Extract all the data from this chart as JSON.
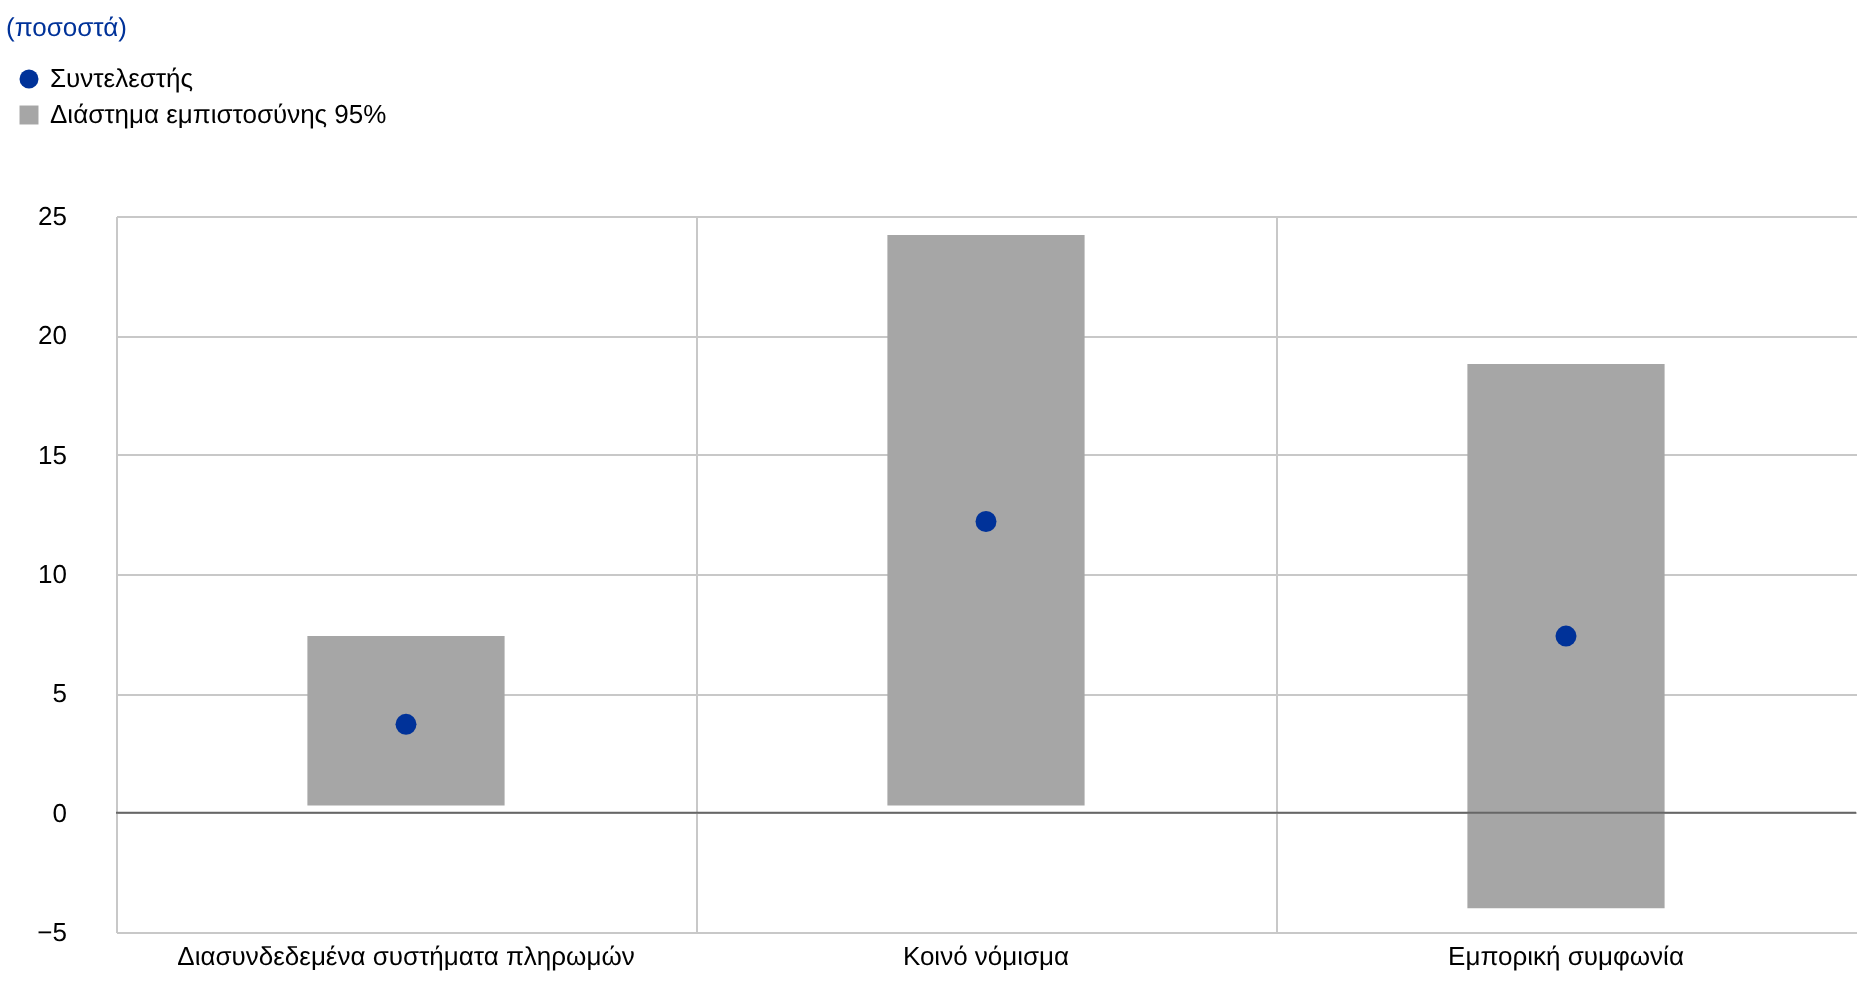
{
  "chart_data": {
    "type": "bar",
    "annotations": [
      "(ποσοστά)"
    ],
    "categories": [
      "Διασυνδεδεμένα συστήματα πληρωμών",
      "Κοινό νόμισμα",
      "Εμπορική συμφωνία"
    ],
    "series": [
      {
        "name": "Συντελεστής",
        "type": "scatter",
        "color": "#003299",
        "values": [
          3.7,
          12.2,
          7.4
        ]
      },
      {
        "name": "Διάστημα εμπιστοσύνης 95%",
        "color": "#a6a6a6",
        "base": [
          0.3,
          0.3,
          -4.0
        ],
        "values": [
          7.1,
          23.9,
          22.8
        ]
      }
    ],
    "ylim": [
      -5,
      25
    ],
    "yticks": [
      -5,
      0,
      5,
      10,
      15,
      20,
      25
    ],
    "grid": true,
    "legend": "top left",
    "marker": "circle"
  }
}
